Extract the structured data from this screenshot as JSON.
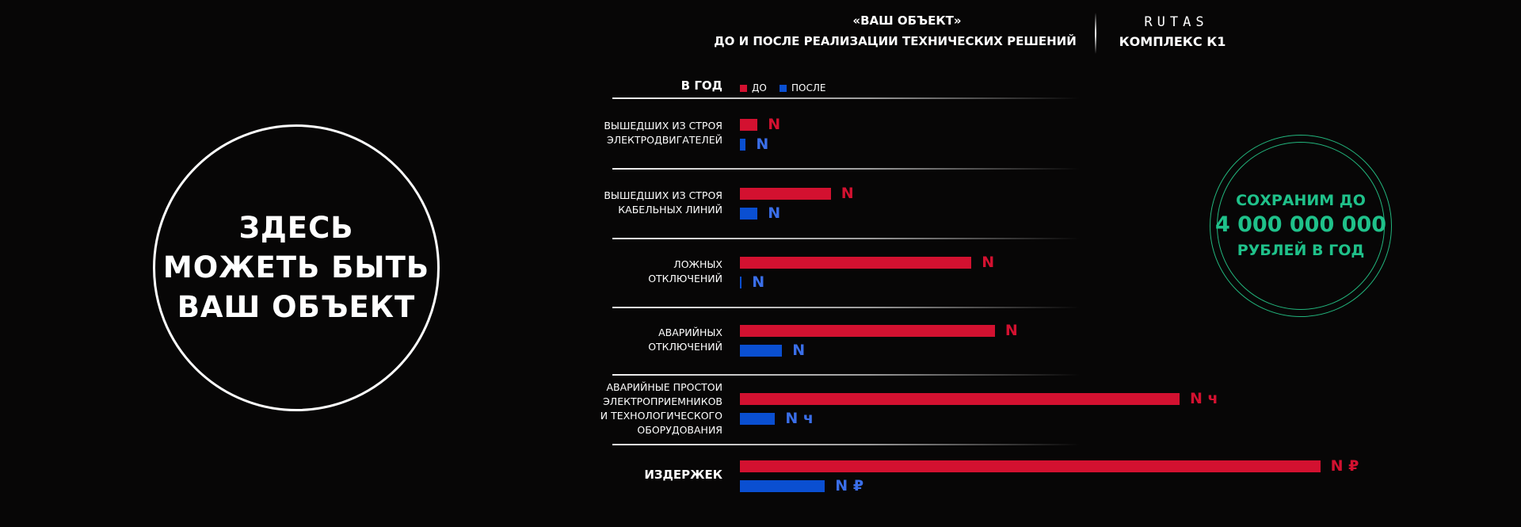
{
  "header": {
    "title": "«ВАШ ОБЪЕКТ»",
    "subtitle": "ДО И ПОСЛЕ  РЕАЛИЗАЦИИ ТЕХНИЧЕСКИХ РЕШЕНИЙ",
    "brand_logo": "RUTAS",
    "brand_product": "КОМПЛЕКС К1"
  },
  "object_circle": {
    "lines": [
      "ЗДЕСЬ",
      "МОЖЕТЬ БЫТЬ",
      "ВАШ ОБЪЕКТ"
    ]
  },
  "savings": {
    "line1": "СОХРАНИМ ДО",
    "amount": "4 000 000 000",
    "line2": "РУБЛЕЙ В ГОД",
    "color": "#1fc18a"
  },
  "colors": {
    "before": "#d31130",
    "after": "#0a4fd1",
    "after_label": "#3a6ee8",
    "background": "#070606"
  },
  "chart_data": {
    "type": "bar",
    "orientation": "horizontal",
    "group_header": "В ГОД",
    "legend": [
      "ДО",
      "ПОСЛЕ"
    ],
    "categories": [
      [
        "ВЫШЕДШИХ ИЗ СТРОЯ",
        "ЭЛЕКТРОДВИГАТЕЛЕЙ"
      ],
      [
        "ВЫШЕДШИХ ИЗ СТРОЯ",
        "КАБЕЛЬНЫХ ЛИНИЙ"
      ],
      [
        "ЛОЖНЫХ",
        "ОТКЛЮЧЕНИЙ"
      ],
      [
        "АВАРИЙНЫХ",
        "ОТКЛЮЧЕНИЙ"
      ],
      [
        "АВАРИЙНЫЕ ПРОСТОИ",
        "ЭЛЕКТРОПРИЕМНИКОВ",
        "И ТЕХНОЛОГИЧЕСКОГО",
        "ОБОРУДОВАНИЯ"
      ],
      [
        "ИЗДЕРЖЕК"
      ]
    ],
    "series": [
      {
        "name": "ДО",
        "values": [
          3,
          15.5,
          39.5,
          43.5,
          75,
          99
        ],
        "labels": [
          "N",
          "N",
          "N",
          "N",
          "N ч",
          "N ₽"
        ]
      },
      {
        "name": "ПОСЛЕ",
        "values": [
          1,
          3,
          0.3,
          7.2,
          6,
          14.5
        ],
        "labels": [
          "N",
          "N",
          "N",
          "N",
          "N ч",
          "N ₽"
        ]
      }
    ],
    "xlim": [
      0,
      100
    ]
  }
}
